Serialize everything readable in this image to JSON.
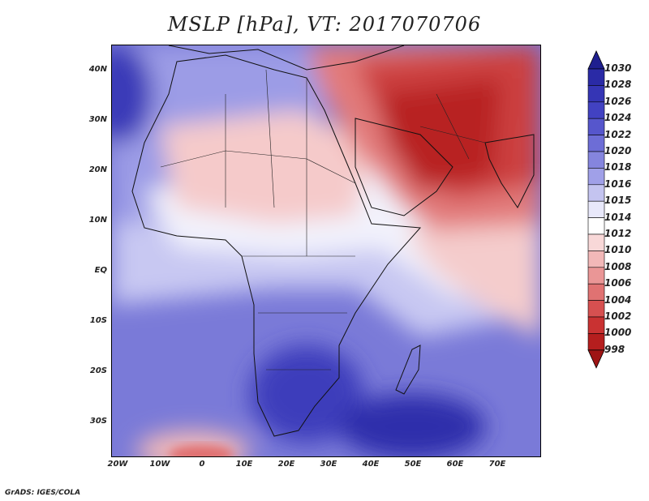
{
  "title": "MSLP [hPa], VT: 2017070706",
  "credit": "GrADS: IGES/COLA",
  "lat_labels": [
    "40N",
    "30N",
    "20N",
    "10N",
    "EQ",
    "10S",
    "20S",
    "30S"
  ],
  "lon_labels": [
    "20W",
    "10W",
    "0",
    "10E",
    "20E",
    "30E",
    "40E",
    "50E",
    "60E",
    "70E"
  ],
  "colorbar": {
    "levels": [
      "1030",
      "1028",
      "1026",
      "1024",
      "1022",
      "1020",
      "1018",
      "1016",
      "1015",
      "1014",
      "1012",
      "1010",
      "1008",
      "1006",
      "1004",
      "1002",
      "1000",
      "998"
    ],
    "colors": [
      "#1f1f8f",
      "#2a2aa6",
      "#3535b5",
      "#4242c2",
      "#5656cc",
      "#6d6dd6",
      "#8585de",
      "#a0a0e8",
      "#c4c4f0",
      "#e8e8fa",
      "#ffffff",
      "#f8d8d8",
      "#f2b8b8",
      "#ea9696",
      "#e07272",
      "#d65050",
      "#c93232",
      "#b51e1e",
      "#9e1414"
    ]
  },
  "colors": {
    "high": "#3030b0",
    "mid": "#ffffff",
    "low": "#b01818"
  }
}
